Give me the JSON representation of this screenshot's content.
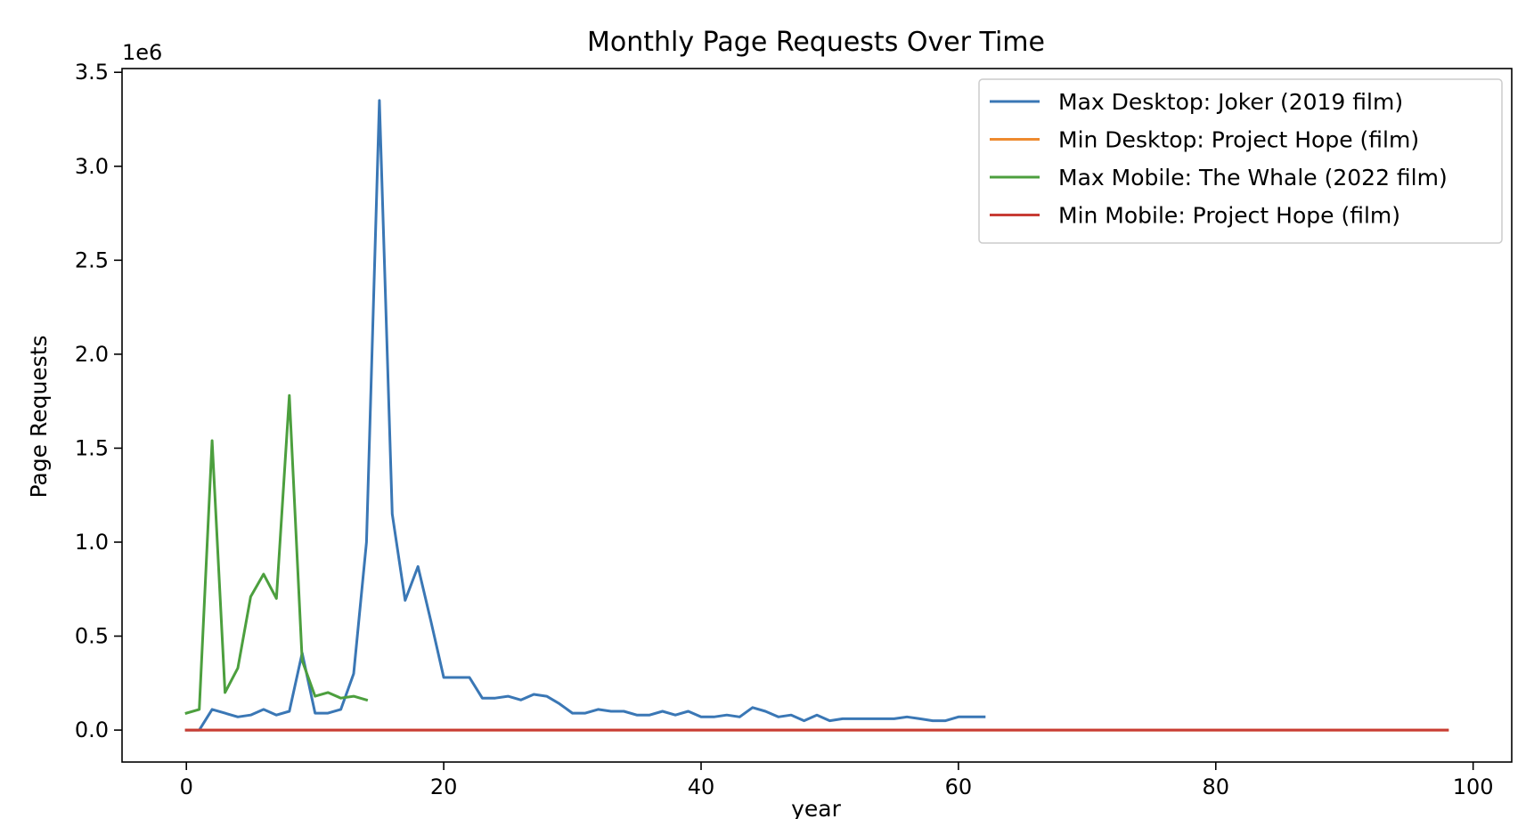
{
  "chart_data": {
    "type": "line",
    "title": "Monthly Page Requests Over Time",
    "xlabel": "year",
    "ylabel": "Page Requests",
    "y_multiplier_label": "1e6",
    "xlim": [
      -5,
      103
    ],
    "ylim": [
      -0.17,
      3.52
    ],
    "xticks": [
      0,
      20,
      40,
      60,
      80,
      100
    ],
    "xtick_labels": [
      "0",
      "20",
      "40",
      "60",
      "80",
      "100"
    ],
    "yticks": [
      0.0,
      0.5,
      1.0,
      1.5,
      2.0,
      2.5,
      3.0,
      3.5
    ],
    "ytick_labels": [
      "0.0",
      "0.5",
      "1.0",
      "1.5",
      "2.0",
      "2.5",
      "3.0",
      "3.5"
    ],
    "grid": false,
    "legend_position": "top-right",
    "series": [
      {
        "name": "Max Desktop: Joker (2019 film)",
        "color": "#3a77b5",
        "x_start": 0,
        "values": [
          0.0,
          0.0,
          0.11,
          0.09,
          0.07,
          0.08,
          0.11,
          0.08,
          0.1,
          0.41,
          0.09,
          0.09,
          0.11,
          0.3,
          1.0,
          3.35,
          1.15,
          0.69,
          0.87,
          0.58,
          0.28,
          0.28,
          0.28,
          0.17,
          0.17,
          0.18,
          0.16,
          0.19,
          0.18,
          0.14,
          0.09,
          0.09,
          0.11,
          0.1,
          0.1,
          0.08,
          0.08,
          0.1,
          0.08,
          0.1,
          0.07,
          0.07,
          0.08,
          0.07,
          0.12,
          0.1,
          0.07,
          0.08,
          0.05,
          0.08,
          0.05,
          0.06,
          0.06,
          0.06,
          0.06,
          0.06,
          0.07,
          0.06,
          0.05,
          0.05,
          0.07,
          0.07,
          0.07
        ]
      },
      {
        "name": "Min Desktop: Project Hope (film)",
        "color": "#ee8a2f",
        "x_start": 0,
        "x_end": 98,
        "constant": 0.0
      },
      {
        "name": "Max Mobile: The Whale (2022 film)",
        "color": "#4c9f3e",
        "x_start": 0,
        "values": [
          0.09,
          0.11,
          1.54,
          0.2,
          0.33,
          0.71,
          0.83,
          0.7,
          1.78,
          0.37,
          0.18,
          0.2,
          0.17,
          0.18,
          0.16
        ]
      },
      {
        "name": "Min Mobile: Project Hope (film)",
        "color": "#c83c35",
        "x_start": 0,
        "x_end": 98,
        "constant": 0.0
      }
    ]
  }
}
